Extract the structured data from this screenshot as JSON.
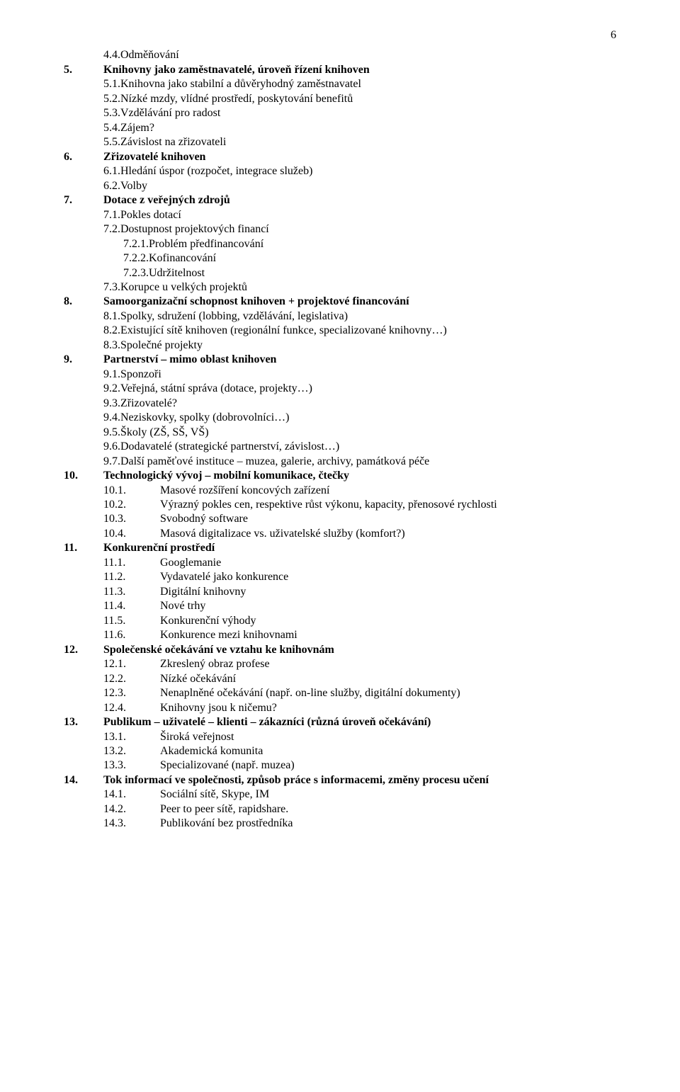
{
  "page_number": "6",
  "items": [
    {
      "type": "l2",
      "num": "4.4.",
      "text": "Odměňování"
    },
    {
      "type": "l1",
      "num": "5.",
      "text": "Knihovny jako zaměstnavatelé, úroveň řízení knihoven",
      "bold": true
    },
    {
      "type": "l2",
      "num": "5.1.",
      "text": "Knihovna jako stabilní a důvěryhodný zaměstnavatel"
    },
    {
      "type": "l2",
      "num": "5.2.",
      "text": "Nízké mzdy, vlídné prostředí, poskytování benefitů"
    },
    {
      "type": "l2",
      "num": "5.3.",
      "text": "Vzdělávání pro radost"
    },
    {
      "type": "l2",
      "num": "5.4.",
      "text": "Zájem?"
    },
    {
      "type": "l2",
      "num": "5.5.",
      "text": "Závislost na zřizovateli"
    },
    {
      "type": "l1",
      "num": "6.",
      "text": "Zřizovatelé knihoven",
      "bold": true
    },
    {
      "type": "l2",
      "num": "6.1.",
      "text": "Hledání úspor (rozpočet, integrace služeb)"
    },
    {
      "type": "l2",
      "num": "6.2.",
      "text": "Volby"
    },
    {
      "type": "l1",
      "num": "7.",
      "text": "Dotace z veřejných zdrojů",
      "bold": true
    },
    {
      "type": "l2",
      "num": "7.1.",
      "text": "Pokles dotací"
    },
    {
      "type": "l2",
      "num": "7.2.",
      "text": "Dostupnost projektových financí"
    },
    {
      "type": "l3",
      "num": "7.2.1.",
      "text": "Problém předfinancování"
    },
    {
      "type": "l3",
      "num": "7.2.2.",
      "text": "Kofinancování"
    },
    {
      "type": "l3",
      "num": "7.2.3.",
      "text": "Udržitelnost"
    },
    {
      "type": "l2",
      "num": "7.3.",
      "text": "Korupce u velkých projektů"
    },
    {
      "type": "l1",
      "num": "8.",
      "text": "Samoorganizační schopnost knihoven + projektové financování",
      "bold": true
    },
    {
      "type": "l2",
      "num": "8.1.",
      "text": "Spolky, sdružení (lobbing, vzdělávání, legislativa)"
    },
    {
      "type": "l2",
      "num": "8.2.",
      "text": "Existující sítě knihoven (regionální funkce, specializované knihovny…)"
    },
    {
      "type": "l2",
      "num": "8.3.",
      "text": "Společné projekty"
    },
    {
      "type": "l1",
      "num": "9.",
      "text": "Partnerství – mimo oblast knihoven",
      "bold": true
    },
    {
      "type": "l2",
      "num": "9.1.",
      "text": "Sponzoři"
    },
    {
      "type": "l2",
      "num": "9.2.",
      "text": "Veřejná, státní správa (dotace, projekty…)"
    },
    {
      "type": "l2",
      "num": "9.3.",
      "text": "Zřizovatelé?"
    },
    {
      "type": "l2",
      "num": "9.4.",
      "text": "Neziskovky, spolky (dobrovolníci…)"
    },
    {
      "type": "l2",
      "num": "9.5.",
      "text": "Školy (ZŠ, SŠ, VŠ)"
    },
    {
      "type": "l2",
      "num": "9.6.",
      "text": "Dodavatelé (strategické partnerství, závislost…)"
    },
    {
      "type": "l2",
      "num": "9.7.",
      "text": "Další paměťové instituce – muzea, galerie, archivy, památková péče"
    },
    {
      "type": "l1",
      "num": "10.",
      "text": "Technologický vývoj – mobilní komunikace, čtečky",
      "bold": true
    },
    {
      "type": "l2w",
      "num": "10.1.",
      "text": "Masové rozšíření koncových zařízení"
    },
    {
      "type": "l2w",
      "num": "10.2.",
      "text": "Výrazný pokles cen, respektive růst výkonu, kapacity, přenosové rychlosti"
    },
    {
      "type": "l2w",
      "num": "10.3.",
      "text": "Svobodný software"
    },
    {
      "type": "l2w",
      "num": "10.4.",
      "text": "Masová digitalizace vs. uživatelské služby (komfort?)"
    },
    {
      "type": "l1",
      "num": "11.",
      "text": "Konkurenční prostředí",
      "bold": true
    },
    {
      "type": "l2w",
      "num": "11.1.",
      "text": "Googlemanie"
    },
    {
      "type": "l2w",
      "num": "11.2.",
      "text": "Vydavatelé jako konkurence"
    },
    {
      "type": "l2w",
      "num": "11.3.",
      "text": "Digitální knihovny"
    },
    {
      "type": "l2w",
      "num": "11.4.",
      "text": "Nové trhy"
    },
    {
      "type": "l2w",
      "num": "11.5.",
      "text": "Konkurenční výhody"
    },
    {
      "type": "l2w",
      "num": "11.6.",
      "text": "Konkurence mezi knihovnami"
    },
    {
      "type": "l1",
      "num": "12.",
      "text": "Společenské očekávání ve vztahu ke knihovnám",
      "bold": true
    },
    {
      "type": "l2w",
      "num": "12.1.",
      "text": "Zkreslený obraz profese"
    },
    {
      "type": "l2w",
      "num": "12.2.",
      "text": "Nízké očekávání"
    },
    {
      "type": "l2w",
      "num": "12.3.",
      "text": "Nenaplněné očekávání (např. on-line služby, digitální dokumenty)"
    },
    {
      "type": "l2w",
      "num": "12.4.",
      "text": "Knihovny jsou k ničemu?"
    },
    {
      "type": "l1",
      "num": "13.",
      "text": "Publikum – uživatelé – klienti – zákazníci (různá úroveň očekávání)",
      "bold": true
    },
    {
      "type": "l2w",
      "num": "13.1.",
      "text": "Široká veřejnost"
    },
    {
      "type": "l2w",
      "num": "13.2.",
      "text": "Akademická komunita"
    },
    {
      "type": "l2w",
      "num": "13.3.",
      "text": "Specializované (např. muzea)"
    },
    {
      "type": "l1",
      "num": "14.",
      "text": "Tok informací ve společnosti, způsob práce s informacemi, změny procesu učení",
      "bold": true
    },
    {
      "type": "l2w",
      "num": "14.1.",
      "text": "Sociální sítě, Skype, IM"
    },
    {
      "type": "l2w",
      "num": "14.2.",
      "text": "Peer to peer sítě, rapidshare."
    },
    {
      "type": "l2w",
      "num": "14.3.",
      "text": "Publikování bez prostředníka"
    }
  ]
}
